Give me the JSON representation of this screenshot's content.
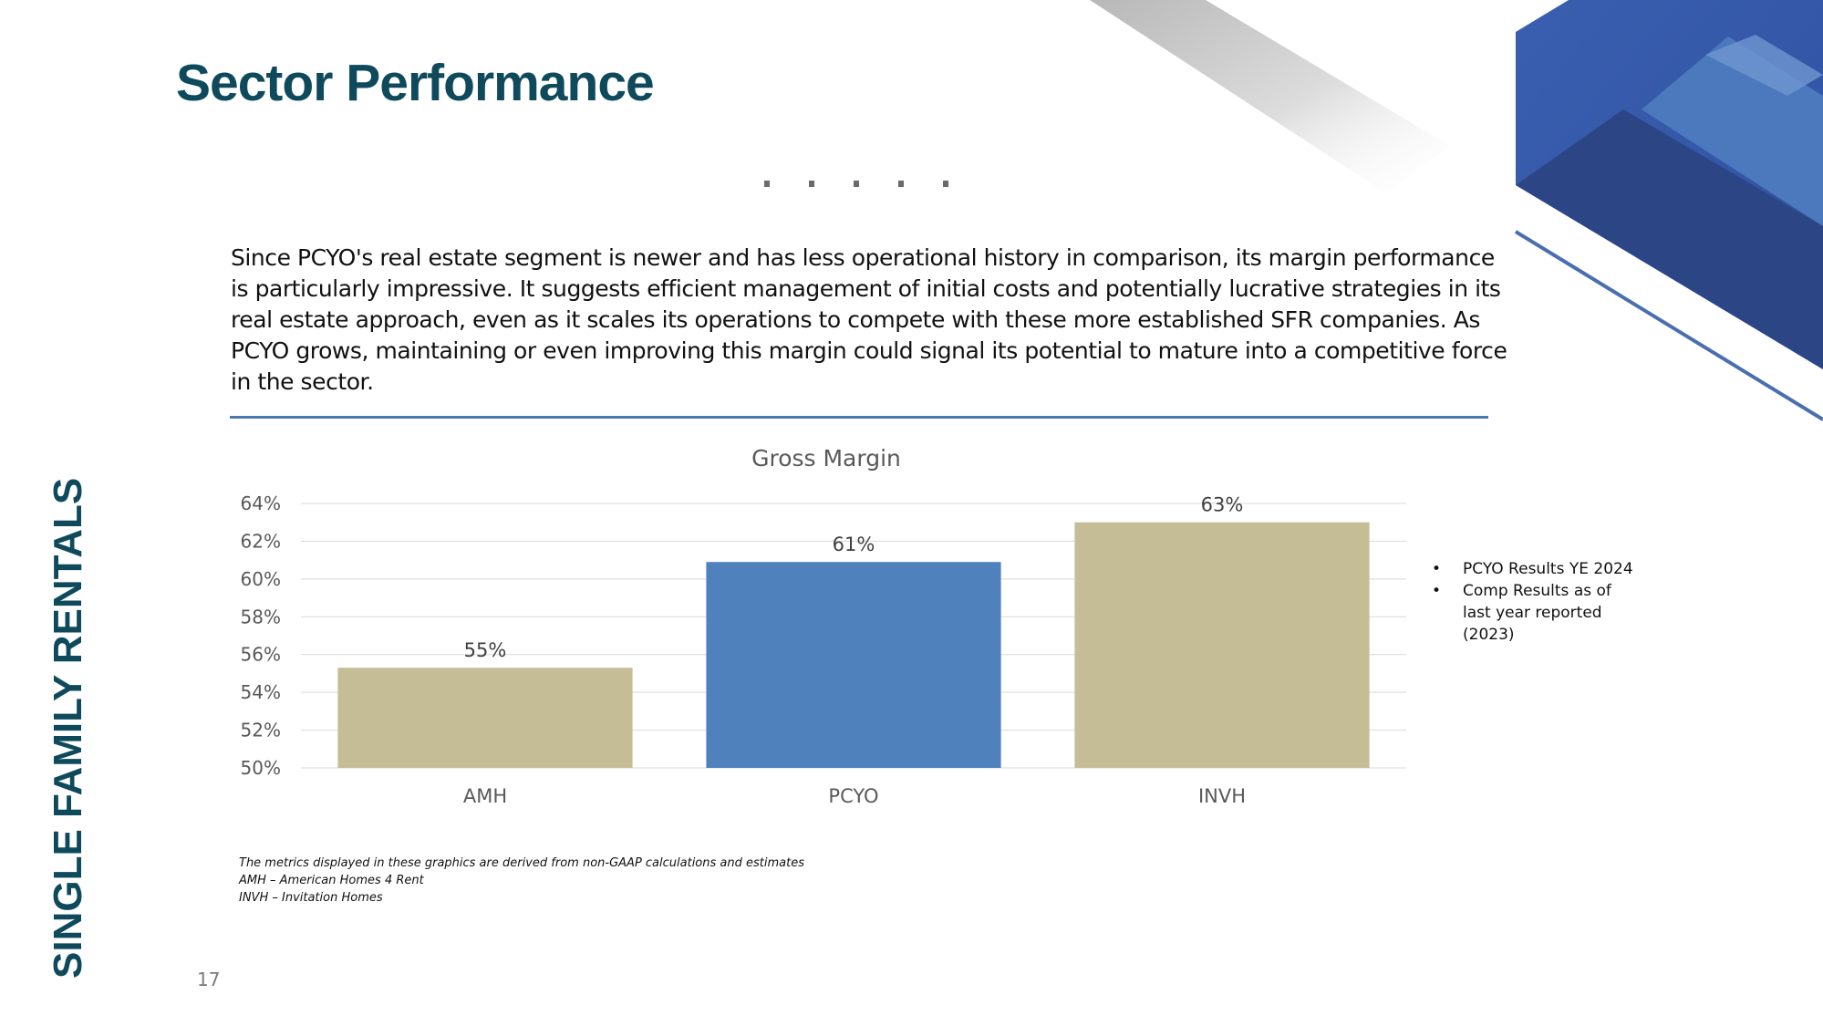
{
  "slide": {
    "title": "Sector Performance",
    "side_label": "SINGLE FAMILY RENTALS",
    "page_number": "17",
    "body": "Since PCYO's real estate segment is newer and has less operational history in comparison, its margin performance is particularly impressive. It suggests efficient management of initial costs and potentially lucrative strategies in its real estate approach, even as it scales its operations to compete with these more established SFR companies. As PCYO grows, maintaining or even improving this margin could signal its potential to mature into a competitive force in the sector.",
    "notes": [
      "PCYO Results YE 2024",
      "Comp Results as of last year reported (2023)"
    ],
    "footnotes": [
      "The metrics displayed in these graphics are derived from non-GAAP calculations and estimates",
      "AMH – American Homes 4 Rent",
      "INVH – Invitation Homes"
    ]
  },
  "colors": {
    "title": "#0f4a5c",
    "accent_blue": "#4f81bd",
    "comp_tan": "#c5bd96",
    "deco_dark": "#2f4a8f",
    "deco_light": "#4a77b8"
  },
  "chart_data": {
    "type": "bar",
    "title": "Gross Margin",
    "categories": [
      "AMH",
      "PCYO",
      "INVH"
    ],
    "values": [
      55.3,
      60.9,
      63.0
    ],
    "data_labels": [
      "55%",
      "61%",
      "63%"
    ],
    "bar_colors": [
      "#c5bd96",
      "#4f81bd",
      "#c5bd96"
    ],
    "ylim": [
      50,
      64
    ],
    "yticks": [
      50,
      52,
      54,
      56,
      58,
      60,
      62,
      64
    ],
    "ytick_labels": [
      "50%",
      "52%",
      "54%",
      "56%",
      "58%",
      "60%",
      "62%",
      "64%"
    ],
    "xlabel": "",
    "ylabel": "",
    "grid": true,
    "legend": "none"
  }
}
